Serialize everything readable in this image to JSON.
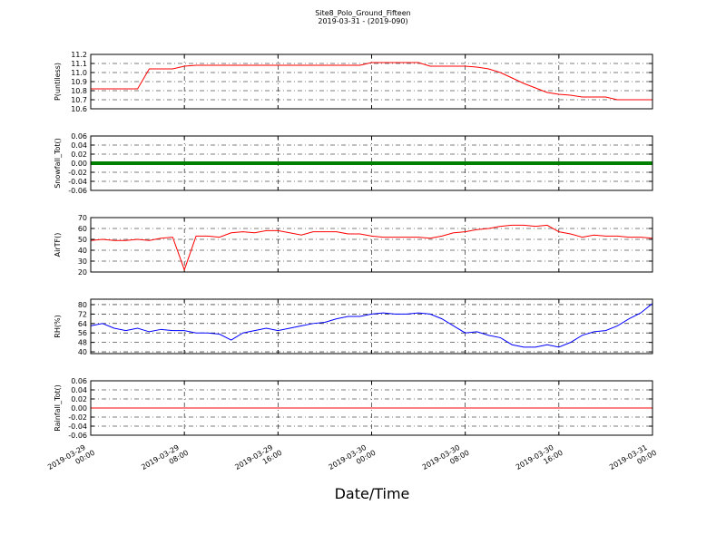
{
  "title": "Site8_Polo_Ground_Fifteen",
  "subtitle": "2019-03-31 - (2019-090)",
  "xlabel": "Date/Time",
  "xlim": [
    "2019-03-29 00:00",
    "2019-03-31 00:00"
  ],
  "xticks": [
    "2019-03-29 00:00",
    "2019-03-29 08:00",
    "2019-03-29 16:00",
    "2019-03-30 00:00",
    "2019-03-30 08:00",
    "2019-03-30 16:00",
    "2019-03-31 00:00"
  ],
  "x": [
    "2019-03-29 00:00",
    "2019-03-29 01:00",
    "2019-03-29 02:00",
    "2019-03-29 03:00",
    "2019-03-29 04:00",
    "2019-03-29 05:00",
    "2019-03-29 06:00",
    "2019-03-29 07:00",
    "2019-03-29 08:00",
    "2019-03-29 09:00",
    "2019-03-29 10:00",
    "2019-03-29 11:00",
    "2019-03-29 12:00",
    "2019-03-29 13:00",
    "2019-03-29 14:00",
    "2019-03-29 15:00",
    "2019-03-29 16:00",
    "2019-03-29 17:00",
    "2019-03-29 18:00",
    "2019-03-29 19:00",
    "2019-03-29 20:00",
    "2019-03-29 21:00",
    "2019-03-29 22:00",
    "2019-03-29 23:00",
    "2019-03-30 00:00",
    "2019-03-30 01:00",
    "2019-03-30 02:00",
    "2019-03-30 03:00",
    "2019-03-30 04:00",
    "2019-03-30 05:00",
    "2019-03-30 06:00",
    "2019-03-30 07:00",
    "2019-03-30 08:00",
    "2019-03-30 09:00",
    "2019-03-30 10:00",
    "2019-03-30 11:00",
    "2019-03-30 12:00",
    "2019-03-30 13:00",
    "2019-03-30 14:00",
    "2019-03-30 15:00",
    "2019-03-30 16:00",
    "2019-03-30 17:00",
    "2019-03-30 18:00",
    "2019-03-30 19:00",
    "2019-03-30 20:00",
    "2019-03-30 21:00",
    "2019-03-30 22:00",
    "2019-03-30 23:00",
    "2019-03-31 00:00"
  ],
  "chart_data": [
    {
      "type": "line",
      "ylabel": "P(untiless)",
      "color": "#ff0000",
      "grid": true,
      "ylim": [
        10.6,
        11.2
      ],
      "yticks": [
        10.6,
        10.7,
        10.8,
        10.9,
        {
          "value": 11,
          "label": "11.0"
        },
        11.1,
        11.2
      ],
      "values": [
        10.82,
        10.82,
        10.82,
        10.82,
        10.82,
        11.04,
        11.04,
        11.04,
        11.07,
        11.08,
        11.08,
        11.08,
        11.08,
        11.08,
        11.08,
        11.08,
        11.08,
        11.08,
        11.08,
        11.08,
        11.08,
        11.08,
        11.08,
        11.08,
        11.11,
        11.11,
        11.11,
        11.11,
        11.11,
        11.07,
        11.07,
        11.07,
        11.07,
        11.06,
        11.04,
        11.0,
        10.94,
        10.88,
        10.83,
        10.78,
        10.76,
        10.75,
        10.73,
        10.73,
        10.73,
        10.7,
        10.7,
        10.7,
        10.7
      ]
    },
    {
      "type": "line",
      "ylabel": "Snowfall_Tot()",
      "color": "#008000",
      "grid": true,
      "ylim": [
        -0.06,
        0.06
      ],
      "yticks": [
        -0.06,
        -0.04,
        -0.02,
        {
          "value": 0,
          "label": "0.00"
        },
        0.02,
        0.04,
        0.06
      ],
      "values": [
        0,
        0,
        0,
        0,
        0,
        0,
        0,
        0,
        0,
        0,
        0,
        0,
        0,
        0,
        0,
        0,
        0,
        0,
        0,
        0,
        0,
        0,
        0,
        0,
        0,
        0,
        0,
        0,
        0,
        0,
        0,
        0,
        0,
        0,
        0,
        0,
        0,
        0,
        0,
        0,
        0,
        0,
        0,
        0,
        0,
        0,
        0,
        0,
        0
      ]
    },
    {
      "type": "line",
      "ylabel": "AirTF()",
      "color": "#ff0000",
      "grid": true,
      "ylim": [
        20,
        70
      ],
      "yticks": [
        20,
        30,
        40,
        50,
        60,
        70
      ],
      "values": [
        49,
        50,
        49,
        49,
        50,
        49,
        51,
        52,
        22,
        53,
        53,
        52,
        56,
        57,
        56,
        58,
        58,
        56,
        54,
        57,
        57,
        57,
        55,
        55,
        53,
        52,
        52,
        52,
        52,
        51,
        53,
        56,
        57,
        59,
        60,
        62,
        63,
        63,
        62,
        63,
        57,
        55,
        52,
        54,
        53,
        53,
        52,
        52,
        51
      ]
    },
    {
      "type": "line",
      "ylabel": "RH(%)",
      "color": "#0000ff",
      "grid": true,
      "ylim": [
        38.5,
        84.6
      ],
      "yticks": [
        40,
        48,
        56,
        64,
        72,
        80
      ],
      "values": [
        62,
        64,
        60,
        58,
        60,
        57,
        59,
        58,
        58,
        56,
        56,
        55,
        50,
        56,
        58,
        60,
        58,
        60,
        62,
        64,
        65,
        68,
        70,
        70,
        72,
        73,
        72,
        72,
        73,
        72,
        68,
        62,
        56,
        57,
        54,
        52,
        46,
        44,
        44,
        46,
        44,
        48,
        54,
        57,
        58,
        62,
        68,
        73,
        81
      ]
    },
    {
      "type": "line",
      "ylabel": "Rainfall_Tot()",
      "color": "#ff0000",
      "grid": true,
      "ylim": [
        -0.06,
        0.06
      ],
      "yticks": [
        -0.06,
        -0.04,
        -0.02,
        {
          "value": 0,
          "label": "0.00"
        },
        0.02,
        0.04,
        0.06
      ],
      "values": [
        0,
        0,
        0,
        0,
        0,
        0,
        0,
        0,
        0,
        0,
        0,
        0,
        0,
        0,
        0,
        0,
        0,
        0,
        0,
        0,
        0,
        0,
        0,
        0,
        0,
        0,
        0,
        0,
        0,
        0,
        0,
        0,
        0,
        0,
        0,
        0,
        0,
        0,
        0,
        0,
        0,
        0,
        0,
        0,
        0,
        0,
        0,
        0,
        0
      ]
    }
  ]
}
